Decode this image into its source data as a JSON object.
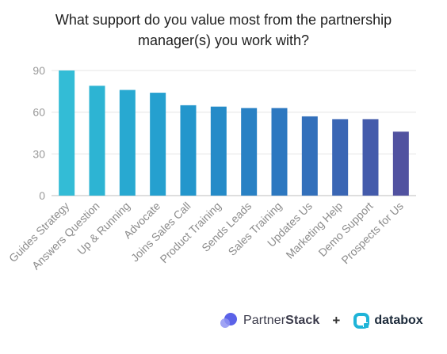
{
  "chart_data": {
    "type": "bar",
    "title_lines": [
      "What support do you value most from the partnership",
      "manager(s) you work with?"
    ],
    "categories": [
      "Guides Strategy",
      "Answers Question",
      "Up & Running",
      "Advocate",
      "Joins Sales Call",
      "Product Training",
      "Sends Leads",
      "Sales Training",
      "Updates Us",
      "Marketing Help",
      "Demo Support",
      "Prospects for Us"
    ],
    "values": [
      90,
      79,
      76,
      74,
      65,
      64,
      63,
      63,
      57,
      55,
      55,
      46
    ],
    "colors": [
      "#33bcd6",
      "#2db4d3",
      "#28a9d1",
      "#25a0cf",
      "#2396cc",
      "#258bc8",
      "#2981c4",
      "#2d78c0",
      "#3370bb",
      "#3a66b4",
      "#445bab",
      "#5152a0"
    ],
    "ylim": [
      0,
      90
    ],
    "yticks": [
      0,
      30,
      60,
      90
    ],
    "xlabel": "",
    "ylabel": "",
    "grid": true
  },
  "footer": {
    "partnerstack_prefix": "Partner",
    "partnerstack_suffix": "Stack",
    "plus": "+",
    "databox": "databox",
    "partnerstack_color": "#5b62e8",
    "databox_color": "#1fb4d8"
  }
}
